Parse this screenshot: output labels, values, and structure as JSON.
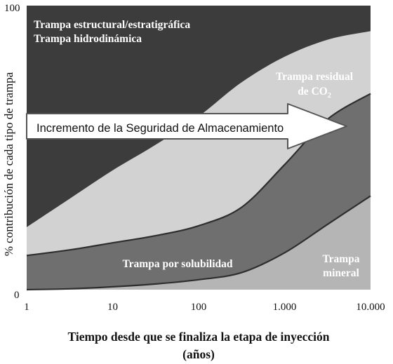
{
  "chart_data": {
    "type": "area",
    "stacked": true,
    "x_scale": "log",
    "xlim": [
      1,
      10000
    ],
    "ylim": [
      0,
      100
    ],
    "xlabel_lines": [
      "Tiempo desde que se finaliza la etapa de inyección",
      "(años)"
    ],
    "ylabel": "% contribución de cada tipo de trampa",
    "x_ticks": [
      {
        "value": 1,
        "label": "1"
      },
      {
        "value": 10,
        "label": "10"
      },
      {
        "value": 100,
        "label": "100"
      },
      {
        "value": 1000,
        "label": "1.000"
      },
      {
        "value": 10000,
        "label": "10.000"
      }
    ],
    "y_ticks": [
      {
        "value": 0,
        "label": "0"
      },
      {
        "value": 100,
        "label": "100"
      }
    ],
    "x": [
      1,
      3.16,
      10,
      31.6,
      100,
      316,
      1000,
      3160,
      10000
    ],
    "boundaries": {
      "mineral_top": [
        0,
        0.3,
        1,
        2,
        3.5,
        6,
        13,
        23,
        33
      ],
      "solubility_top": [
        12,
        14,
        16.5,
        19,
        22.5,
        29,
        44,
        60,
        69
      ],
      "residual_top": [
        22,
        32,
        42,
        51,
        61,
        73,
        82,
        88,
        91
      ]
    },
    "regions": [
      {
        "name": "Trampa mineral",
        "lines": [
          "Trampa",
          "mineral"
        ],
        "color": "#b5b5b5"
      },
      {
        "name": "Trampa por solubilidad",
        "lines": [
          "Trampa por solubilidad"
        ],
        "color": "#6f6f6f"
      },
      {
        "name": "Trampa residual de CO2",
        "lines": [
          "Trampa residual",
          "de CO"
        ],
        "subscript": "2",
        "color": "#d2d2d2"
      },
      {
        "name": "Trampa estructural/estratigráfica y hidrodinámica",
        "lines": [
          "Trampa estructural/estratigráfica",
          "Trampa hidrodinámica"
        ],
        "color": "#3c3c3c"
      }
    ],
    "annotation": {
      "text": "Incremento de la Seguridad de Almacenamiento",
      "style": "arrow-right"
    }
  }
}
